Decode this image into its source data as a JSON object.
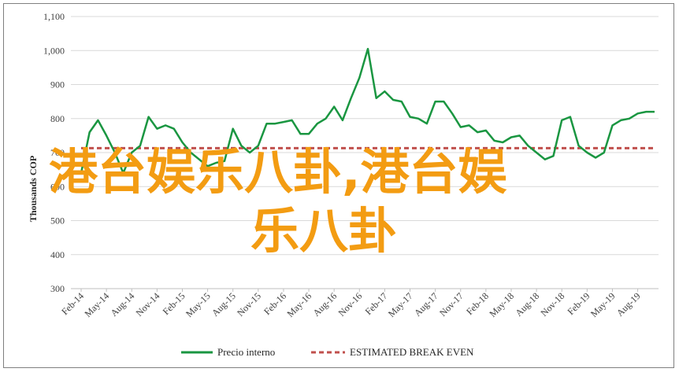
{
  "chart_data": {
    "type": "line",
    "title": "",
    "xlabel": "",
    "ylabel": "Thousands COP",
    "ylim": [
      300,
      1100
    ],
    "yticks": [
      300,
      400,
      500,
      600,
      700,
      800,
      900,
      1000,
      1100
    ],
    "ytick_labels": [
      "300",
      "400",
      "500",
      "600",
      "700",
      "800",
      "900",
      "1,000",
      "1,100"
    ],
    "xticks": [
      "Feb-14",
      "May-14",
      "Aug-14",
      "Nov-14",
      "Feb-15",
      "May-15",
      "Aug-15",
      "Nov-15",
      "Feb-16",
      "May-16",
      "Aug-16",
      "Nov-16",
      "Feb-17",
      "May-17",
      "Aug-17",
      "Nov-17",
      "Feb-18",
      "May-18",
      "Aug-18",
      "Nov-18",
      "Feb-19",
      "May-19",
      "Aug-19"
    ],
    "grid": true,
    "legend_position": "bottom",
    "series": [
      {
        "name": "Precio interno",
        "color": "#1a9641",
        "style": "solid",
        "x": [
          "Feb-14",
          "Mar-14",
          "Apr-14",
          "May-14",
          "Jun-14",
          "Jul-14",
          "Aug-14",
          "Sep-14",
          "Oct-14",
          "Nov-14",
          "Dec-14",
          "Jan-15",
          "Feb-15",
          "Mar-15",
          "Apr-15",
          "May-15",
          "Jun-15",
          "Jul-15",
          "Aug-15",
          "Sep-15",
          "Oct-15",
          "Nov-15",
          "Dec-15",
          "Jan-16",
          "Feb-16",
          "Mar-16",
          "Apr-16",
          "May-16",
          "Jun-16",
          "Jul-16",
          "Aug-16",
          "Sep-16",
          "Oct-16",
          "Nov-16",
          "Dec-16",
          "Jan-17",
          "Feb-17",
          "Mar-17",
          "Apr-17",
          "May-17",
          "Jun-17",
          "Jul-17",
          "Aug-17",
          "Sep-17",
          "Oct-17",
          "Nov-17",
          "Dec-17",
          "Jan-18",
          "Feb-18",
          "Mar-18",
          "Apr-18",
          "May-18",
          "Jun-18",
          "Jul-18",
          "Aug-18",
          "Sep-18",
          "Oct-18",
          "Nov-18",
          "Dec-18",
          "Jan-19",
          "Feb-19",
          "Mar-19",
          "Apr-19",
          "May-19",
          "Jun-19",
          "Jul-19",
          "Aug-19",
          "Sep-19",
          "Oct-19"
        ],
        "values": [
          640,
          760,
          795,
          750,
          700,
          640,
          700,
          720,
          805,
          770,
          780,
          770,
          730,
          700,
          680,
          660,
          670,
          675,
          770,
          720,
          700,
          720,
          785,
          785,
          790,
          795,
          755,
          755,
          785,
          800,
          835,
          795,
          860,
          920,
          1005,
          860,
          880,
          855,
          850,
          805,
          800,
          785,
          850,
          850,
          815,
          775,
          780,
          760,
          765,
          735,
          730,
          745,
          750,
          720,
          700,
          680,
          690,
          795,
          805,
          720,
          700,
          685,
          700,
          780,
          795,
          800,
          815,
          820,
          820
        ]
      },
      {
        "name": "ESTIMATED BREAK EVEN",
        "color": "#c0504d",
        "style": "dashed",
        "value": 713
      }
    ],
    "overlay_text_line1": "港台娱乐八卦,港台娱",
    "overlay_text_line2": "乐八卦"
  }
}
